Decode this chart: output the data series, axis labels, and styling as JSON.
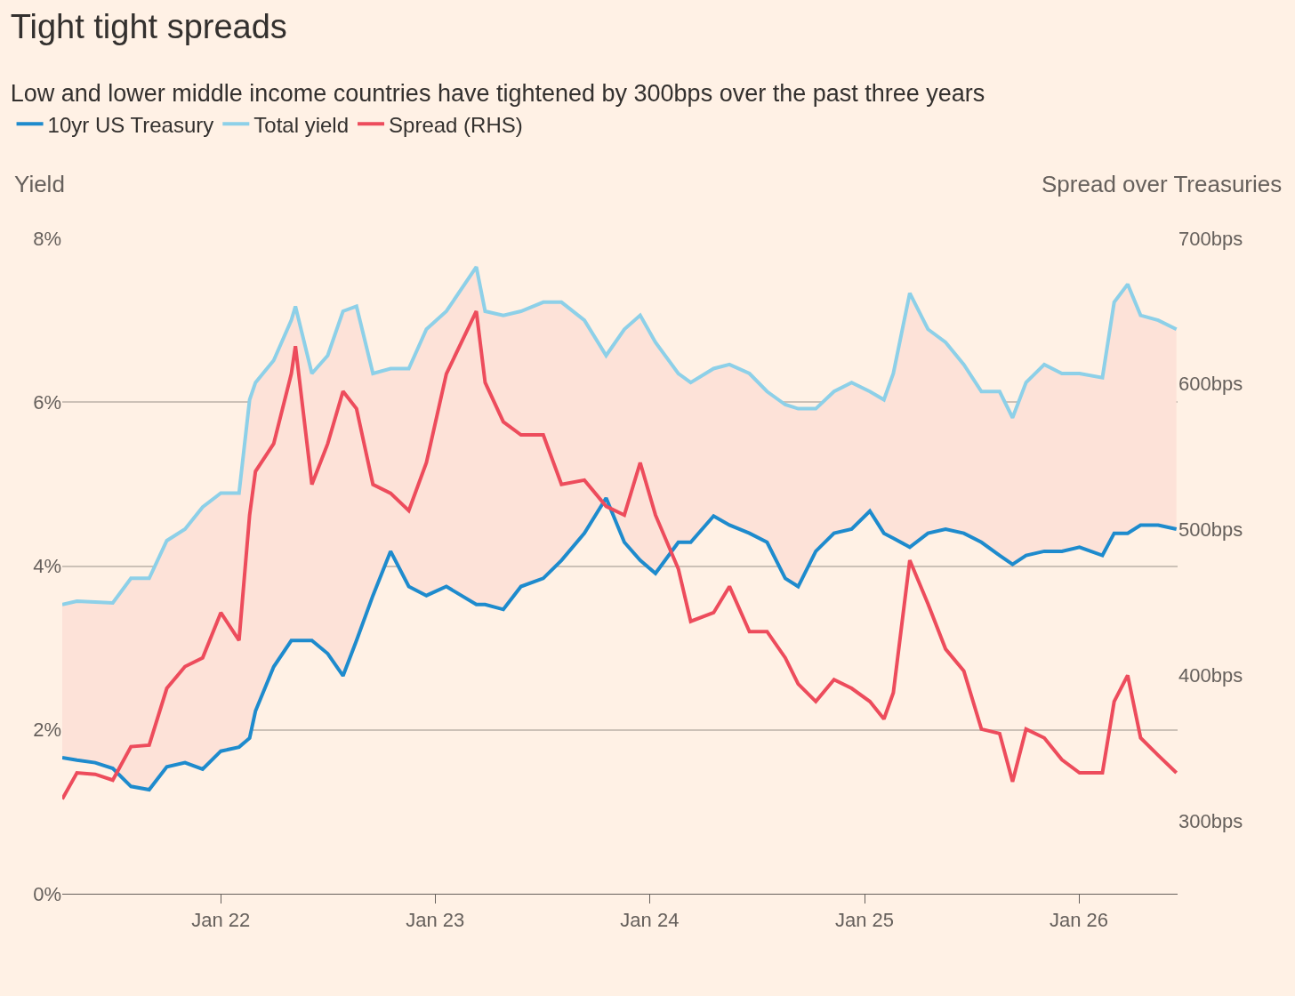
{
  "chart_data": {
    "type": "line",
    "title": "Tight tight spreads",
    "subtitle": "Low and lower middle income countries have tightened by 300bps over the past three years",
    "ylabel": "Yield",
    "y2label": "Spread over Treasuries",
    "x": [
      "2021-04-06",
      "2021-05-01",
      "2021-06-01",
      "2021-07-01",
      "2021-08-01",
      "2021-09-01",
      "2021-10-01",
      "2021-11-01",
      "2021-12-01",
      "2022-01-01",
      "2022-02-01",
      "2022-02-19",
      "2022-03-01",
      "2022-04-01",
      "2022-05-01",
      "2022-05-08",
      "2022-06-05",
      "2022-07-02",
      "2022-07-28",
      "2022-08-20",
      "2022-09-17",
      "2022-10-17",
      "2022-11-17",
      "2022-12-17",
      "2023-01-20",
      "2023-03-12",
      "2023-03-27",
      "2023-04-27",
      "2023-05-27",
      "2023-07-04",
      "2023-08-04",
      "2023-09-12",
      "2023-10-19",
      "2023-11-19",
      "2023-12-16",
      "2024-01-11",
      "2024-02-19",
      "2024-03-11",
      "2024-04-19",
      "2024-05-16",
      "2024-06-19",
      "2024-07-19",
      "2024-08-19",
      "2024-09-10",
      "2024-10-10",
      "2024-11-10",
      "2024-12-10",
      "2025-01-10",
      "2025-02-03",
      "2025-02-19",
      "2025-03-19",
      "2025-04-19",
      "2025-05-19",
      "2025-06-19",
      "2025-07-19",
      "2025-08-19",
      "2025-09-10",
      "2025-10-03",
      "2025-11-03",
      "2025-12-03",
      "2026-01-02",
      "2026-02-10",
      "2026-03-02",
      "2026-03-25",
      "2026-04-16",
      "2026-05-16",
      "2026-06-16"
    ],
    "series": [
      {
        "name": "10yr US Treasury",
        "color": "#1e8bcd",
        "values": [
          1.66,
          1.63,
          1.6,
          1.53,
          1.31,
          1.27,
          1.55,
          1.6,
          1.52,
          1.74,
          1.79,
          1.9,
          2.23,
          2.77,
          3.09,
          3.09,
          3.09,
          2.93,
          2.66,
          3.09,
          3.64,
          4.18,
          3.75,
          3.64,
          3.75,
          3.53,
          3.53,
          3.47,
          3.75,
          3.85,
          4.07,
          4.4,
          4.83,
          4.29,
          4.07,
          3.91,
          4.29,
          4.29,
          4.61,
          4.5,
          4.4,
          4.29,
          3.85,
          3.75,
          4.18,
          4.4,
          4.45,
          4.67,
          4.4,
          4.34,
          4.23,
          4.4,
          4.45,
          4.4,
          4.29,
          4.13,
          4.02,
          4.13,
          4.18,
          4.18,
          4.23,
          4.13,
          4.4,
          4.4,
          4.5,
          4.5,
          4.45
        ]
      },
      {
        "name": "Total yield",
        "color": "#8dd0e8",
        "lower": [
          1.66,
          1.63,
          1.6,
          1.53,
          1.31,
          1.27,
          1.55,
          1.6,
          1.52,
          1.74,
          1.79,
          1.9,
          2.23,
          2.77,
          3.09,
          3.09,
          3.09,
          2.93,
          2.66,
          3.09,
          3.64,
          4.18,
          3.75,
          3.64,
          3.75,
          3.53,
          3.53,
          3.47,
          3.75,
          3.85,
          4.07,
          4.4,
          4.83,
          4.29,
          4.07,
          3.91,
          4.29,
          4.29,
          4.61,
          4.5,
          4.4,
          4.29,
          3.85,
          3.75,
          4.18,
          4.4,
          4.45,
          4.67,
          4.4,
          4.34,
          4.23,
          4.4,
          4.45,
          4.4,
          4.29,
          4.13,
          4.02,
          4.13,
          4.18,
          4.18,
          4.23,
          4.13,
          4.4,
          4.4,
          4.5,
          4.5,
          4.45
        ],
        "upper": [
          3.53,
          3.57,
          3.56,
          3.55,
          3.85,
          3.85,
          4.31,
          4.45,
          4.72,
          4.89,
          4.89,
          6.03,
          6.24,
          6.51,
          7.0,
          7.17,
          6.35,
          6.57,
          7.11,
          7.17,
          6.35,
          6.41,
          6.41,
          6.89,
          7.11,
          7.65,
          7.11,
          7.06,
          7.11,
          7.22,
          7.22,
          7.0,
          6.57,
          6.89,
          7.06,
          6.73,
          6.35,
          6.24,
          6.41,
          6.46,
          6.35,
          6.13,
          5.97,
          5.92,
          5.92,
          6.13,
          6.24,
          6.13,
          6.03,
          6.35,
          7.33,
          6.89,
          6.73,
          6.46,
          6.13,
          6.13,
          5.81,
          6.24,
          6.46,
          6.35,
          6.35,
          6.3,
          7.22,
          7.44,
          7.06,
          7.0,
          6.89
        ],
        "values": [
          3.53,
          3.57,
          3.56,
          3.55,
          3.85,
          3.85,
          4.31,
          4.45,
          4.72,
          4.89,
          4.89,
          6.03,
          6.24,
          6.51,
          7.0,
          7.17,
          6.35,
          6.57,
          7.11,
          7.17,
          6.35,
          6.41,
          6.41,
          6.89,
          7.11,
          7.65,
          7.11,
          7.06,
          7.11,
          7.22,
          7.22,
          7.0,
          6.57,
          6.89,
          7.06,
          6.73,
          6.35,
          6.24,
          6.41,
          6.46,
          6.35,
          6.13,
          5.97,
          5.92,
          5.92,
          6.13,
          6.24,
          6.13,
          6.03,
          6.35,
          7.33,
          6.89,
          6.73,
          6.46,
          6.13,
          6.13,
          5.81,
          6.24,
          6.46,
          6.35,
          6.35,
          6.3,
          7.22,
          7.44,
          7.06,
          7.0,
          6.89
        ]
      },
      {
        "name": "Spread (RHS)",
        "color": "#ed4c5c",
        "axis": "y2",
        "values": [
          315,
          333,
          332,
          328,
          351,
          352,
          391,
          406,
          412,
          443,
          424,
          510,
          540,
          559,
          607,
          626,
          531,
          559,
          595,
          583,
          531,
          525,
          513,
          546,
          607,
          650,
          601,
          574,
          565,
          565,
          531,
          534,
          516,
          510,
          546,
          510,
          473,
          437,
          443,
          461,
          430,
          430,
          412,
          394,
          382,
          397,
          391,
          382,
          370,
          388,
          479,
          449,
          418,
          403,
          363,
          360,
          327,
          363,
          357,
          342,
          333,
          333,
          382,
          400,
          357,
          345,
          333
        ]
      }
    ],
    "xlim": [
      "2021-04-06",
      "2026-06-18"
    ],
    "xticks": [
      {
        "value": "2022-01-01",
        "label": "Jan 22"
      },
      {
        "value": "2023-01-01",
        "label": "Jan 23"
      },
      {
        "value": "2024-01-01",
        "label": "Jan 24"
      },
      {
        "value": "2025-01-01",
        "label": "Jan 25"
      },
      {
        "value": "2026-01-01",
        "label": "Jan 26"
      }
    ],
    "ylim": [
      0,
      8
    ],
    "yticks": [
      {
        "value": 0,
        "label": "0%"
      },
      {
        "value": 2,
        "label": "2%"
      },
      {
        "value": 4,
        "label": "4%"
      },
      {
        "value": 6,
        "label": "6%"
      },
      {
        "value": 8,
        "label": "8%"
      }
    ],
    "y2lim": [
      250,
      700
    ],
    "y2ticks": [
      {
        "value": 300,
        "label": "300bps"
      },
      {
        "value": 400,
        "label": "400bps"
      },
      {
        "value": 500,
        "label": "500bps"
      },
      {
        "value": 600,
        "label": "600bps"
      },
      {
        "value": 700,
        "label": "700bps"
      }
    ],
    "grid": "y",
    "legend": "top left",
    "marker": "none",
    "line_style": "solid"
  }
}
